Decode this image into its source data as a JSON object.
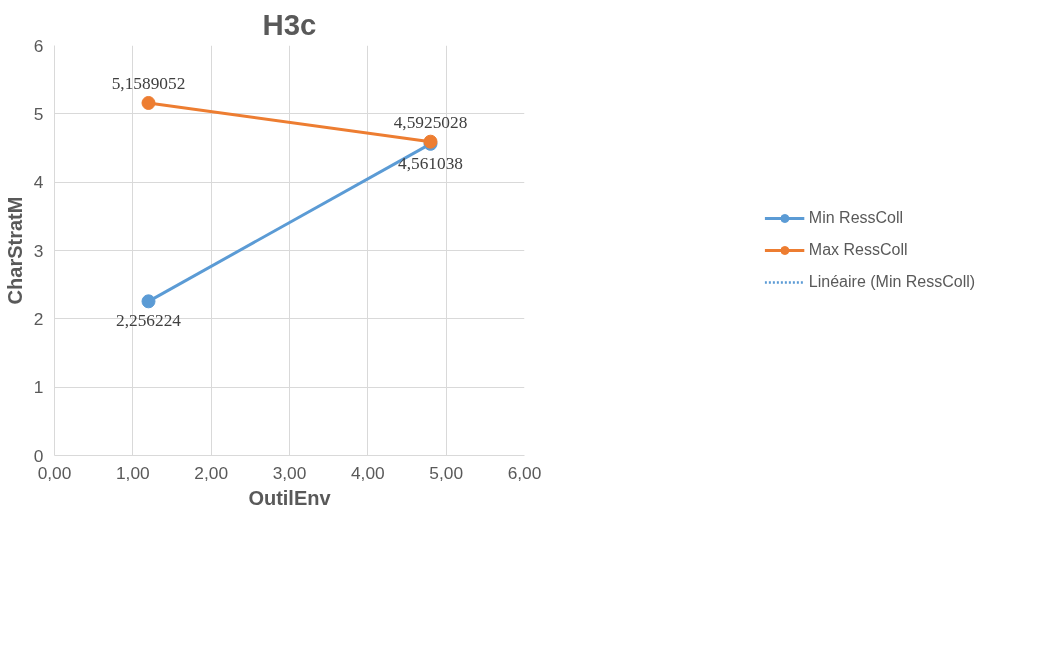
{
  "chart_data": {
    "type": "line",
    "title": "H3c",
    "xlabel": "OutilEnv",
    "ylabel": "CharStratM",
    "xlim": [
      0,
      6
    ],
    "ylim": [
      0,
      6
    ],
    "xticks": [
      {
        "value": 0,
        "label": "0,00"
      },
      {
        "value": 1,
        "label": "1,00"
      },
      {
        "value": 2,
        "label": "2,00"
      },
      {
        "value": 3,
        "label": "3,00"
      },
      {
        "value": 4,
        "label": "4,00"
      },
      {
        "value": 5,
        "label": "5,00"
      },
      {
        "value": 6,
        "label": "6,00"
      }
    ],
    "yticks": [
      0,
      1,
      2,
      3,
      4,
      5,
      6
    ],
    "x": [
      1.2,
      4.8
    ],
    "grid": true,
    "legend": "right",
    "marker": "circle",
    "line_style": "solid",
    "series": [
      {
        "name": "Min RessColl",
        "color": "#5b9bd5",
        "values": [
          2.256224,
          4.561038
        ],
        "value_labels": [
          "2,256224",
          "4,561038"
        ]
      },
      {
        "name": "Max RessColl",
        "color": "#ed7d31",
        "values": [
          5.1589052,
          4.5925028
        ],
        "value_labels": [
          "5,1589052",
          "4,5925028"
        ]
      },
      {
        "name": "Linéaire (Min RessColl)",
        "color": "#5b9bd5",
        "values": [
          null,
          null
        ],
        "x": [
          null,
          null
        ],
        "marker": "none",
        "line_style": "dotted"
      }
    ]
  }
}
